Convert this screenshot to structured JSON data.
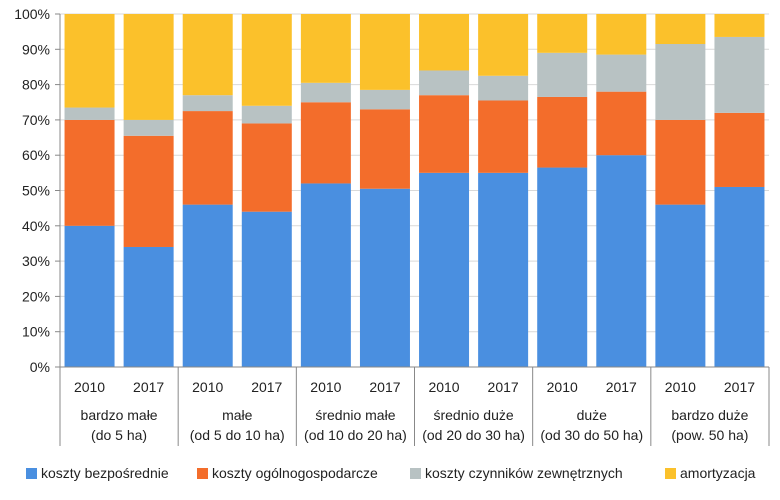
{
  "chart_data": {
    "type": "bar",
    "stacked": true,
    "ylim": [
      0,
      100
    ],
    "yticks": [
      "0%",
      "10%",
      "20%",
      "30%",
      "40%",
      "50%",
      "60%",
      "70%",
      "80%",
      "90%",
      "100%"
    ],
    "grid": true,
    "legend_position": "bottom",
    "categories": [
      "2010",
      "2017",
      "2010",
      "2017",
      "2010",
      "2017",
      "2010",
      "2017",
      "2010",
      "2017",
      "2010",
      "2017"
    ],
    "groups": [
      {
        "label_line1": "bardzo małe",
        "label_line2": "(do 5 ha)"
      },
      {
        "label_line1": "małe",
        "label_line2": "(od 5 do 10 ha)"
      },
      {
        "label_line1": "średnio małe",
        "label_line2": "(od 10 do 20 ha)"
      },
      {
        "label_line1": "średnio duże",
        "label_line2": "(od 20 do 30 ha)"
      },
      {
        "label_line1": "duże",
        "label_line2": "(od 30 do 50 ha)"
      },
      {
        "label_line1": "bardzo duże",
        "label_line2": "(pow. 50 ha)"
      }
    ],
    "series": [
      {
        "name": "koszty bezpośrednie",
        "color": "#4a8fe0",
        "values": [
          40,
          34,
          46,
          44,
          52,
          50.5,
          55,
          55,
          56.5,
          60,
          46,
          51
        ]
      },
      {
        "name": "koszty ogólnogospodarcze",
        "color": "#f36d2b",
        "values": [
          30,
          31.5,
          26.5,
          25,
          23,
          22.5,
          22,
          20.5,
          20,
          18,
          24,
          21
        ]
      },
      {
        "name": "koszty czynników zewnętrznych",
        "color": "#b8c2c3",
        "values": [
          3.5,
          4.5,
          4.5,
          5,
          5.5,
          5.5,
          7,
          7,
          12.5,
          10.5,
          21.5,
          21.5
        ]
      },
      {
        "name": "amortyzacja",
        "color": "#fbc12b",
        "values": [
          26.5,
          30,
          23,
          26,
          19.5,
          21.5,
          16,
          17.5,
          11,
          11.5,
          8.5,
          6.5
        ]
      }
    ]
  }
}
